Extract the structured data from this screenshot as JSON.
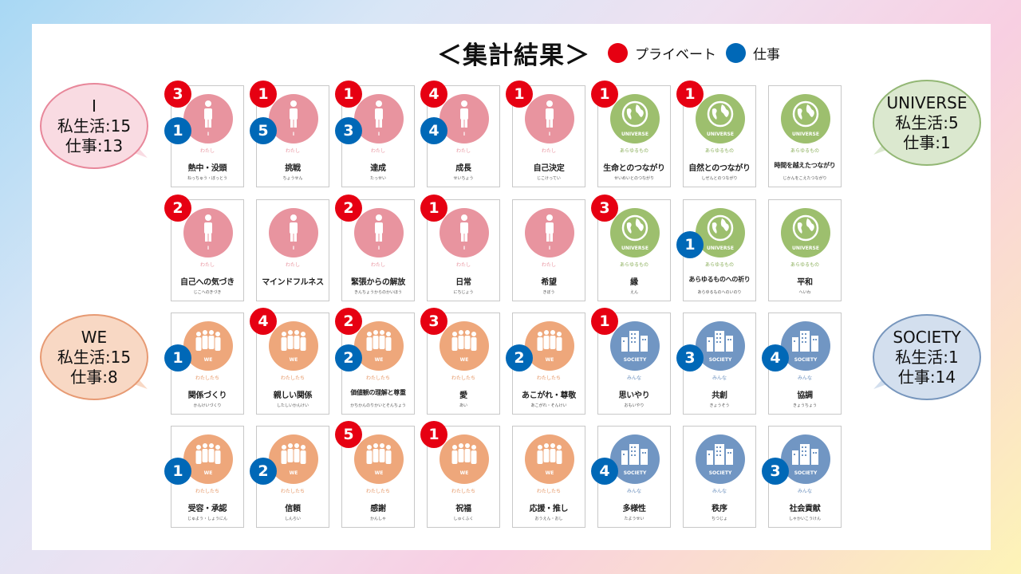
{
  "title": "＜集計結果＞",
  "legend": [
    {
      "label": "プライベート",
      "color": "#e60012"
    },
    {
      "label": "仕事",
      "color": "#0068b7"
    }
  ],
  "bubbles": [
    {
      "id": "i",
      "lines": [
        "I",
        "私生活:15",
        "仕事:13"
      ],
      "fill": "#f9dbe2",
      "border": "#e8879a"
    },
    {
      "id": "universe",
      "lines": [
        "UNIVERSE",
        "私生活:5",
        "仕事:1"
      ],
      "fill": "#dbe8cf",
      "border": "#93b775"
    },
    {
      "id": "we",
      "lines": [
        "WE",
        "私生活:15",
        "仕事:8"
      ],
      "fill": "#f8d8c4",
      "border": "#e79a73"
    },
    {
      "id": "society",
      "lines": [
        "SOCIETY",
        "私生活:1",
        "仕事:14"
      ],
      "fill": "#d3dfee",
      "border": "#7796bd"
    }
  ],
  "categories": {
    "I": {
      "color": "#e8949f",
      "label": "I",
      "jp": "わたし",
      "jpColor": "#e8949f",
      "icon": "person-icon"
    },
    "UNIVERSE": {
      "color": "#9dbf6e",
      "label": "UNIVERSE",
      "jp": "あらゆるもの",
      "jpColor": "#8db05e",
      "icon": "globe-icon"
    },
    "WE": {
      "color": "#eea77b",
      "label": "WE",
      "jp": "わたしたち",
      "jpColor": "#e59563",
      "icon": "group-icon"
    },
    "SOCIETY": {
      "color": "#7196c3",
      "label": "SOCIETY",
      "jp": "みんな",
      "jpColor": "#6a8fbd",
      "icon": "buildings-icon"
    }
  },
  "cards": [
    [
      {
        "cat": "I",
        "name": "熱中・没頭",
        "reading": "ねっちゅう・ぼっとう",
        "p": "3",
        "w": "1"
      },
      {
        "cat": "I",
        "name": "挑戦",
        "reading": "ちょうせん",
        "p": "1",
        "w": "5"
      },
      {
        "cat": "I",
        "name": "達成",
        "reading": "たっせい",
        "p": "1",
        "w": "3"
      },
      {
        "cat": "I",
        "name": "成長",
        "reading": "せいちょう",
        "p": "4",
        "w": "4"
      },
      {
        "cat": "I",
        "name": "自己決定",
        "reading": "じこけってい",
        "p": "1",
        "w": ""
      },
      {
        "cat": "UNIVERSE",
        "name": "生命とのつながり",
        "reading": "せいめいとのつながり",
        "p": "1",
        "w": ""
      },
      {
        "cat": "UNIVERSE",
        "name": "自然とのつながり",
        "reading": "しぜんとのつながり",
        "p": "1",
        "w": ""
      },
      {
        "cat": "UNIVERSE",
        "name": "時間を越えたつながり",
        "reading": "じかんをこえたつながり",
        "p": "",
        "w": ""
      }
    ],
    [
      {
        "cat": "I",
        "name": "自己への気づき",
        "reading": "じこへのきづき",
        "p": "2",
        "w": ""
      },
      {
        "cat": "I",
        "name": "マインドフルネス",
        "reading": "",
        "p": "",
        "w": ""
      },
      {
        "cat": "I",
        "name": "緊張からの解放",
        "reading": "きんちょうからのかいほう",
        "p": "2",
        "w": ""
      },
      {
        "cat": "I",
        "name": "日常",
        "reading": "にちじょう",
        "p": "1",
        "w": ""
      },
      {
        "cat": "I",
        "name": "希望",
        "reading": "きぼう",
        "p": "",
        "w": ""
      },
      {
        "cat": "UNIVERSE",
        "name": "縁",
        "reading": "えん",
        "p": "3",
        "w": ""
      },
      {
        "cat": "UNIVERSE",
        "name": "あらゆるものへの祈り",
        "reading": "あらゆるものへのいのり",
        "p": "",
        "w": "1"
      },
      {
        "cat": "UNIVERSE",
        "name": "平和",
        "reading": "へいわ",
        "p": "",
        "w": ""
      }
    ],
    [
      {
        "cat": "WE",
        "name": "関係づくり",
        "reading": "かんけいづくり",
        "p": "",
        "w": "1"
      },
      {
        "cat": "WE",
        "name": "親しい関係",
        "reading": "したしいかんけい",
        "p": "4",
        "w": ""
      },
      {
        "cat": "WE",
        "name": "価値観の理解と尊重",
        "reading": "かちかんのりかいとそんちょう",
        "p": "2",
        "w": "2"
      },
      {
        "cat": "WE",
        "name": "愛",
        "reading": "あい",
        "p": "3",
        "w": ""
      },
      {
        "cat": "WE",
        "name": "あこがれ・尊敬",
        "reading": "あこがれ・そんけい",
        "p": "",
        "w": "2"
      },
      {
        "cat": "SOCIETY",
        "name": "思いやり",
        "reading": "おもいやり",
        "p": "1",
        "w": ""
      },
      {
        "cat": "SOCIETY",
        "name": "共創",
        "reading": "きょうそう",
        "p": "",
        "w": "3"
      },
      {
        "cat": "SOCIETY",
        "name": "協調",
        "reading": "きょうちょう",
        "p": "",
        "w": "4"
      }
    ],
    [
      {
        "cat": "WE",
        "name": "受容・承認",
        "reading": "じゅよう・しょうにん",
        "p": "",
        "w": "1"
      },
      {
        "cat": "WE",
        "name": "信頼",
        "reading": "しんらい",
        "p": "",
        "w": "2"
      },
      {
        "cat": "WE",
        "name": "感謝",
        "reading": "かんしゃ",
        "p": "5",
        "w": ""
      },
      {
        "cat": "WE",
        "name": "祝福",
        "reading": "しゅくふく",
        "p": "1",
        "w": ""
      },
      {
        "cat": "WE",
        "name": "応援・推し",
        "reading": "おうえん・おし",
        "p": "",
        "w": ""
      },
      {
        "cat": "SOCIETY",
        "name": "多様性",
        "reading": "たようせい",
        "p": "",
        "w": "4"
      },
      {
        "cat": "SOCIETY",
        "name": "秩序",
        "reading": "ちつじょ",
        "p": "",
        "w": ""
      },
      {
        "cat": "SOCIETY",
        "name": "社会貢献",
        "reading": "しゃかいこうけん",
        "p": "",
        "w": "3"
      }
    ]
  ]
}
